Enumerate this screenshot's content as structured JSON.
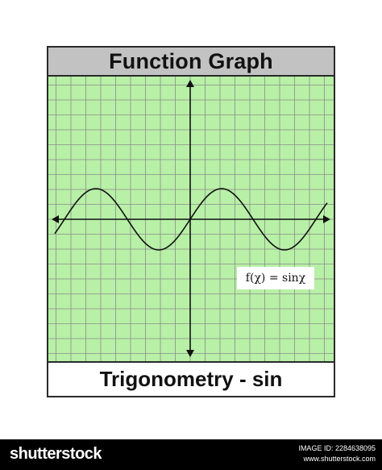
{
  "header": {
    "title": "Function Graph"
  },
  "footer_label": {
    "subtitle": "Trigonometry - sin"
  },
  "chart_data": {
    "type": "line",
    "function": "f(χ) = sinχ",
    "formula_label": "f(χ) = sinχ",
    "series": [
      {
        "x": [
          -6.283,
          -5.498,
          -4.712,
          -3.927,
          -3.142,
          -2.356,
          -1.571,
          -0.785,
          0,
          0.785,
          1.571,
          2.356,
          3.142,
          3.927,
          4.712,
          5.498,
          6.283
        ],
        "y": [
          0,
          0.707,
          1,
          0.707,
          0,
          -0.707,
          -1,
          -0.707,
          0,
          0.707,
          1,
          0.707,
          0,
          -0.707,
          -1,
          -0.707,
          0
        ]
      }
    ],
    "grid": true,
    "colors": {
      "background": "#b7f0a6",
      "grid": "#8c8c8c",
      "curve": "#111111",
      "axes": "#111111"
    }
  },
  "watermark": {
    "brand": "shutterstock",
    "image_id_label": "IMAGE ID: 2284638095",
    "site": "www.shutterstock.com"
  }
}
